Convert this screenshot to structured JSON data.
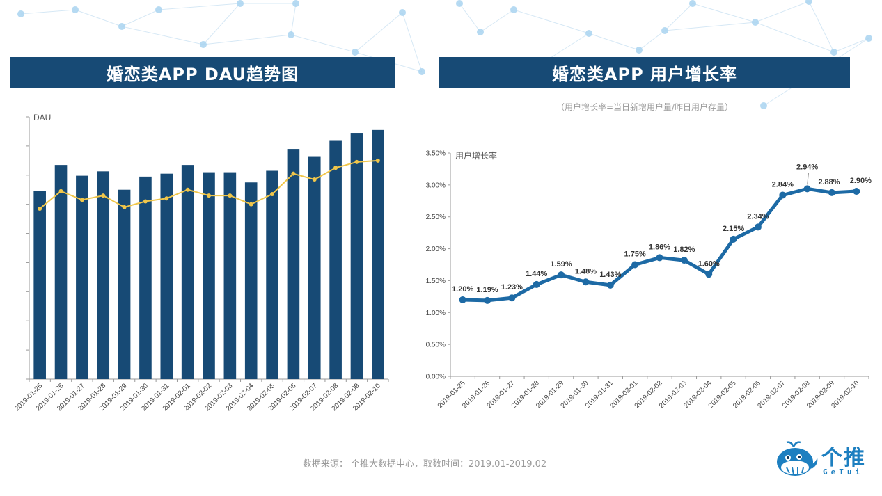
{
  "colors": {
    "bar": "#174a75",
    "dau_line": "#f0c64a",
    "growth_line": "#1d6aa5",
    "title_bg": "#174a75"
  },
  "left_panel": {
    "title": "婚恋类APP  DAU趋势图"
  },
  "right_panel": {
    "title": "婚恋类APP   用户增长率",
    "subtitle": "（用户增长率=当日新增用户量/昨日用户存量）"
  },
  "footer": {
    "source": "数据来源： 个推大数据中心，取数时间：2019.01-2019.02"
  },
  "logo": {
    "cn": "个推",
    "en": "GeTui"
  },
  "chart_data": [
    {
      "type": "bar",
      "title": "婚恋类APP  DAU趋势图",
      "ylabel": "DAU",
      "ylim": [
        0,
        9
      ],
      "y_ticks_labeled": false,
      "categories": [
        "2019-01-25",
        "2019-01-26",
        "2019-01-27",
        "2019-01-28",
        "2019-01-29",
        "2019-01-30",
        "2019-01-31",
        "2019-02-01",
        "2019-02-02",
        "2019-02-03",
        "2019-02-04",
        "2019-02-05",
        "2019-02-06",
        "2019-02-07",
        "2019-02-08",
        "2019-02-09",
        "2019-02-10"
      ],
      "series": [
        {
          "name": "DAU",
          "type": "bar",
          "values": [
            6.45,
            7.35,
            6.98,
            7.13,
            6.5,
            6.95,
            7.05,
            7.35,
            7.1,
            7.1,
            6.75,
            7.15,
            7.9,
            7.65,
            8.2,
            8.45,
            8.55
          ]
        },
        {
          "name": "DAU trend",
          "type": "line",
          "values": [
            5.85,
            6.45,
            6.15,
            6.3,
            5.9,
            6.1,
            6.2,
            6.5,
            6.3,
            6.3,
            6.0,
            6.35,
            7.05,
            6.85,
            7.25,
            7.45,
            7.5
          ]
        }
      ]
    },
    {
      "type": "line",
      "title": "婚恋类APP   用户增长率",
      "ylabel": "用户增长率",
      "ylim": [
        0,
        3.5
      ],
      "y_ticks": [
        "0.00%",
        "0.50%",
        "1.00%",
        "1.50%",
        "2.00%",
        "2.50%",
        "3.00%",
        "3.50%"
      ],
      "categories": [
        "2019-01-25",
        "2019-01-26",
        "2019-01-27",
        "2019-01-28",
        "2019-01-29",
        "2019-01-30",
        "2019-01-31",
        "2019-02-01",
        "2019-02-02",
        "2019-02-03",
        "2019-02-04",
        "2019-02-05",
        "2019-02-06",
        "2019-02-07",
        "2019-02-08",
        "2019-02-09",
        "2019-02-10"
      ],
      "values": [
        1.2,
        1.19,
        1.23,
        1.44,
        1.59,
        1.48,
        1.43,
        1.75,
        1.86,
        1.82,
        1.6,
        2.15,
        2.34,
        2.84,
        2.94,
        2.88,
        2.9
      ],
      "labels": [
        "1.20%",
        "1.19%",
        "1.23%",
        "1.44%",
        "1.59%",
        "1.48%",
        "1.43%",
        "1.75%",
        "1.86%",
        "1.82%",
        "1.60%",
        "2.15%",
        "2.34%",
        "2.84%",
        "2.94%",
        "2.88%",
        "2.90%"
      ]
    }
  ]
}
